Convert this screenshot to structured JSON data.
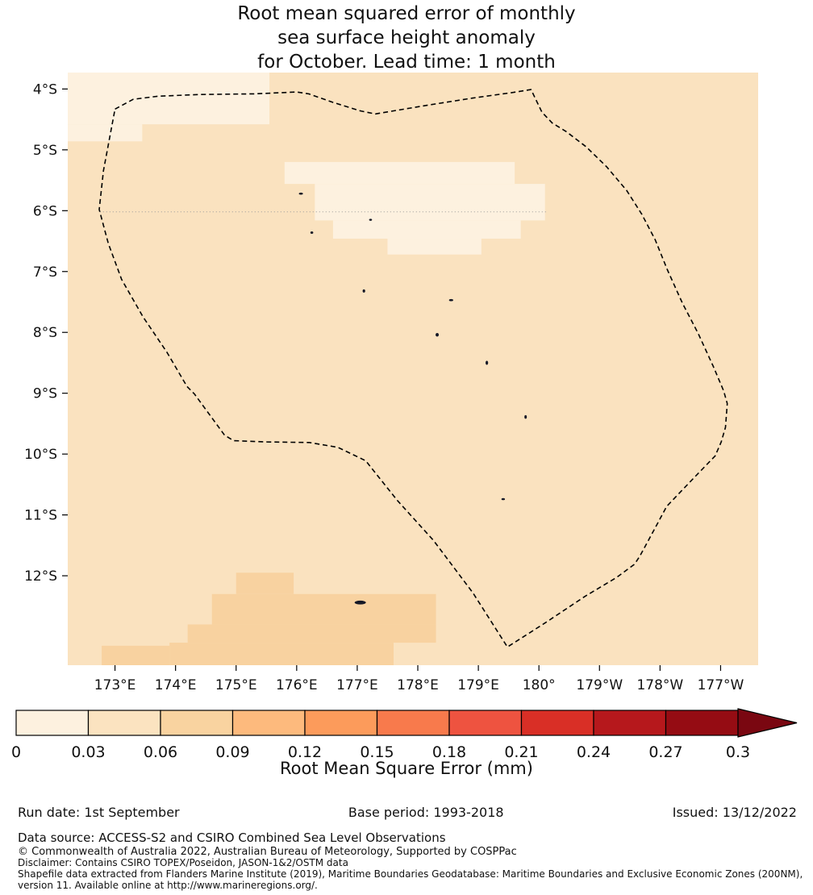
{
  "title": {
    "lines": [
      "Root mean squared error of monthly",
      "sea surface height anomaly",
      "for October. Lead time: 1 month"
    ]
  },
  "chart_data": {
    "type": "heatmap",
    "title": "Root mean squared error of monthly sea surface height anomaly for October. Lead time: 1 month",
    "grid": false,
    "legend_position": "none",
    "x_axis": {
      "tick_labels": [
        "173°E",
        "174°E",
        "175°E",
        "176°E",
        "177°E",
        "178°E",
        "179°E",
        "180°",
        "179°W",
        "178°W",
        "177°W"
      ],
      "tick_lons": [
        173,
        174,
        175,
        176,
        177,
        178,
        179,
        180,
        181,
        182,
        183
      ],
      "range_lon": [
        172.22,
        183.62
      ]
    },
    "y_axis": {
      "tick_labels": [
        "4°S",
        "5°S",
        "6°S",
        "7°S",
        "8°S",
        "9°S",
        "10°S",
        "11°S",
        "12°S"
      ],
      "tick_lats": [
        4,
        5,
        6,
        7,
        8,
        9,
        10,
        11,
        12
      ],
      "range_lat": [
        3.73,
        13.47
      ]
    },
    "colorbar": {
      "label": "Root Mean Square Error (mm)",
      "tick_labels": [
        "0",
        "0.03",
        "0.06",
        "0.09",
        "0.12",
        "0.15",
        "0.18",
        "0.21",
        "0.24",
        "0.27",
        "0.3"
      ],
      "tick_values": [
        0,
        0.03,
        0.06,
        0.09,
        0.12,
        0.15,
        0.18,
        0.21,
        0.24,
        0.27,
        0.3
      ],
      "segment_colors": [
        "#fdf1df",
        "#fbe3c0",
        "#f9d3a0",
        "#fdba7d",
        "#fc9b5b",
        "#f87a4c",
        "#ee5340",
        "#d92f26",
        "#b6181c",
        "#950c13"
      ],
      "arrow_color": "#7a0711"
    },
    "map": {
      "background_color": "#fae2bf",
      "background_value_range": "0.03-0.06",
      "low_rmse_color": "#fdf1df",
      "low_rmse_value_range": "0-0.03",
      "mid_rmse_color": "#f8d2a0",
      "mid_rmse_value_range": "0.06-0.09",
      "low_rmse_cells": [
        [
          172.22,
          175.55,
          3.73,
          4.58
        ],
        [
          172.22,
          173.45,
          4.58,
          4.86
        ],
        [
          175.8,
          179.6,
          5.2,
          5.56
        ],
        [
          176.3,
          180.1,
          5.56,
          6.16
        ],
        [
          176.6,
          179.7,
          6.16,
          6.46
        ],
        [
          177.5,
          179.05,
          6.46,
          6.72
        ]
      ],
      "mid_rmse_cells": [
        [
          175.0,
          175.95,
          11.95,
          12.3
        ],
        [
          174.6,
          178.3,
          12.3,
          12.8
        ],
        [
          174.2,
          178.3,
          12.8,
          13.1
        ],
        [
          173.9,
          177.6,
          13.1,
          13.47
        ],
        [
          172.78,
          173.9,
          13.15,
          13.47
        ]
      ],
      "contour_line_lat": 6.02,
      "contour_line_lon_range": [
        172.75,
        180.15
      ],
      "eez_boundary_lonlat": [
        [
          173.0,
          4.33
        ],
        [
          173.3,
          4.17
        ],
        [
          173.7,
          4.12
        ],
        [
          174.4,
          4.09
        ],
        [
          175.3,
          4.08
        ],
        [
          176.0,
          4.05
        ],
        [
          176.2,
          4.08
        ],
        [
          176.6,
          4.22
        ],
        [
          177.05,
          4.36
        ],
        [
          177.3,
          4.41
        ],
        [
          177.6,
          4.36
        ],
        [
          178.2,
          4.26
        ],
        [
          178.9,
          4.15
        ],
        [
          179.55,
          4.06
        ],
        [
          179.87,
          4.01
        ],
        [
          180.05,
          4.38
        ],
        [
          180.22,
          4.56
        ],
        [
          180.45,
          4.7
        ],
        [
          180.78,
          4.95
        ],
        [
          181.12,
          5.28
        ],
        [
          181.45,
          5.67
        ],
        [
          181.7,
          6.06
        ],
        [
          181.92,
          6.48
        ],
        [
          182.12,
          6.97
        ],
        [
          182.37,
          7.52
        ],
        [
          182.63,
          8.02
        ],
        [
          182.88,
          8.56
        ],
        [
          183.05,
          8.96
        ],
        [
          183.11,
          9.17
        ],
        [
          183.08,
          9.56
        ],
        [
          183.01,
          9.8
        ],
        [
          182.91,
          10.03
        ],
        [
          182.56,
          10.39
        ],
        [
          182.11,
          10.86
        ],
        [
          181.92,
          11.21
        ],
        [
          181.67,
          11.67
        ],
        [
          181.58,
          11.81
        ],
        [
          181.28,
          12.03
        ],
        [
          180.76,
          12.34
        ],
        [
          180.11,
          12.77
        ],
        [
          179.48,
          13.17
        ],
        [
          178.91,
          12.28
        ],
        [
          178.26,
          11.42
        ],
        [
          177.66,
          10.76
        ],
        [
          177.14,
          10.11
        ],
        [
          176.68,
          9.89
        ],
        [
          176.21,
          9.81
        ],
        [
          175.51,
          9.8
        ],
        [
          174.96,
          9.78
        ],
        [
          174.81,
          9.69
        ],
        [
          174.31,
          9.01
        ],
        [
          174.19,
          8.89
        ],
        [
          173.86,
          8.33
        ],
        [
          173.46,
          7.74
        ],
        [
          173.11,
          7.13
        ],
        [
          172.89,
          6.54
        ],
        [
          172.74,
          5.98
        ],
        [
          172.81,
          5.34
        ]
      ],
      "islands_lonlat": [
        [
          176.07,
          5.72,
          2.5,
          1.3
        ],
        [
          177.22,
          6.15,
          1.8,
          1.2
        ],
        [
          176.25,
          6.36,
          1.8,
          1.5
        ],
        [
          177.11,
          7.32,
          1.6,
          2.0
        ],
        [
          178.55,
          7.47,
          2.6,
          1.3
        ],
        [
          178.32,
          8.04,
          2.0,
          2.2
        ],
        [
          179.14,
          8.5,
          1.6,
          2.6
        ],
        [
          179.78,
          9.39,
          1.5,
          2.2
        ],
        [
          179.41,
          10.74,
          2.2,
          1.3
        ],
        [
          177.05,
          12.44,
          7.0,
          2.4
        ]
      ]
    }
  },
  "footer": {
    "run_date": "Run date: 1st September",
    "base_period": "Base period: 1993-2018",
    "issued": "Issued: 13/12/2022",
    "data_source": "Data source: ACCESS-S2 and CSIRO Combined Sea Level Observations",
    "copyright": "© Commonwealth of Australia 2022, Australian Bureau of Meteorology, Supported by COSPPac",
    "disclaimer": "Disclaimer: Contains CSIRO TOPEX/Poseidon, JASON-1&2/OSTM data",
    "shapefile": "Shapefile data extracted from Flanders Marine Institute (2019), Maritime Boundaries Geodatabase: Maritime Boundaries and Exclusive Economic Zones (200NM), version 11. Available online at http://www.marineregions.org/."
  }
}
